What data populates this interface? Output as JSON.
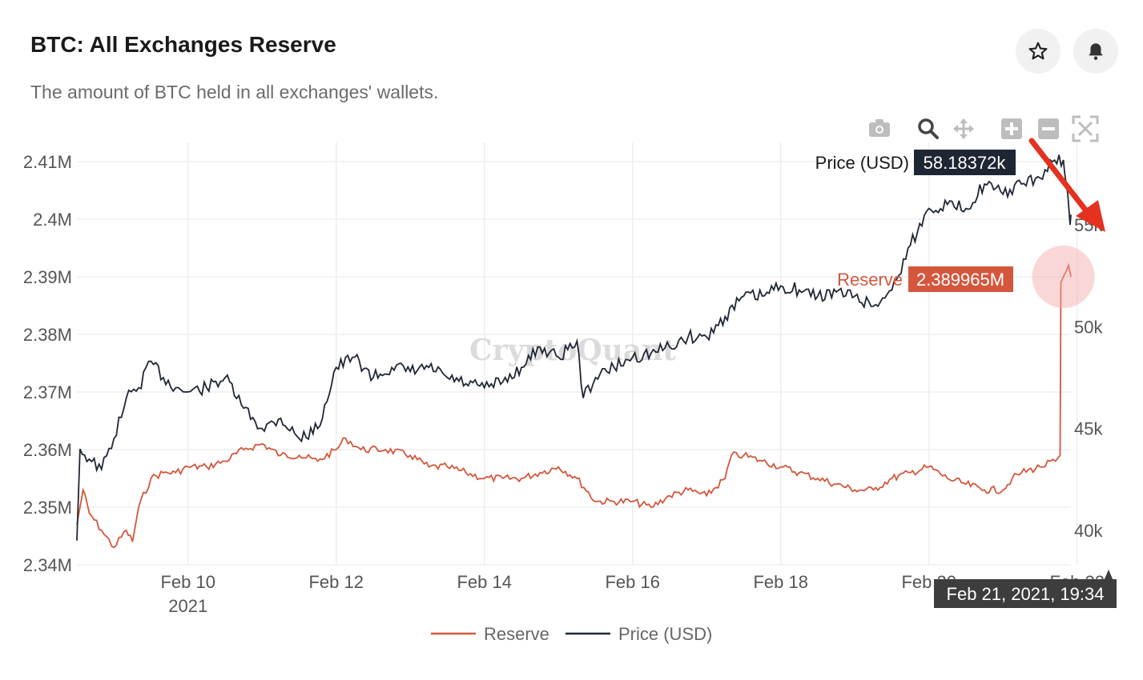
{
  "header": {
    "title": "BTC: All Exchanges Reserve",
    "subtitle": "The amount of BTC held in all exchanges' wallets.",
    "buttons": [
      {
        "icon": "star-icon",
        "name": "favorite-button"
      },
      {
        "icon": "bell-icon",
        "name": "alert-button"
      }
    ]
  },
  "toolbar": {
    "icons": [
      "camera-icon",
      "zoom-icon",
      "pan-icon",
      "zoom-in-icon",
      "zoom-out-icon",
      "autoscale-icon"
    ]
  },
  "watermark": "CryptoQuant",
  "hover": {
    "price_label": "Price (USD)",
    "price_value": "58.18372k",
    "reserve_label": "Reserve",
    "reserve_value": "2.389965M",
    "date_label": "Feb 21, 2021, 19:34"
  },
  "colors": {
    "reserve": "#d4573d",
    "price": "#1f2633",
    "grid": "#eeeeee",
    "annotation_arrow": "#e53120",
    "highlight": "#f4a7a7"
  },
  "chart_data": {
    "type": "line",
    "title": "BTC: All Exchanges Reserve",
    "x_range": [
      "2021-02-08 12:00",
      "2021-02-21 22:00"
    ],
    "x_ticks": [
      {
        "date": "2021-02-10",
        "label": "Feb 10",
        "sublabel": "2021"
      },
      {
        "date": "2021-02-12",
        "label": "Feb 12"
      },
      {
        "date": "2021-02-14",
        "label": "Feb 14"
      },
      {
        "date": "2021-02-16",
        "label": "Feb 16"
      },
      {
        "date": "2021-02-18",
        "label": "Feb 18"
      },
      {
        "date": "2021-02-20",
        "label": "Feb 20"
      },
      {
        "date": "2021-02-22",
        "label": "Feb 22"
      }
    ],
    "y_left": {
      "range": [
        2.34,
        2.412
      ],
      "ticks": [
        2.34,
        2.35,
        2.36,
        2.37,
        2.38,
        2.39,
        2.4,
        2.41
      ],
      "tick_labels": [
        "2.34M",
        "2.35M",
        "2.36M",
        "2.37M",
        "2.38M",
        "2.39M",
        "2.4M",
        "2.41M"
      ]
    },
    "y_right": {
      "range": [
        38.7,
        58.7
      ],
      "ticks": [
        40,
        45,
        50,
        55
      ],
      "tick_labels": [
        "40k",
        "45k",
        "50k",
        "55k"
      ]
    },
    "legend_position": "bottom-center",
    "series": [
      {
        "name": "Reserve",
        "axis": "left",
        "unit": "M BTC",
        "points": [
          [
            "2021-02-08 12:00",
            2.347
          ],
          [
            "2021-02-08 14:00",
            2.353
          ],
          [
            "2021-02-08 16:00",
            2.349
          ],
          [
            "2021-02-08 20:00",
            2.346
          ],
          [
            "2021-02-09 00:00",
            2.343
          ],
          [
            "2021-02-09 04:00",
            2.346
          ],
          [
            "2021-02-09 06:00",
            2.344
          ],
          [
            "2021-02-09 08:00",
            2.35
          ],
          [
            "2021-02-09 12:00",
            2.355
          ],
          [
            "2021-02-09 16:00",
            2.356
          ],
          [
            "2021-02-09 20:00",
            2.356
          ],
          [
            "2021-02-10 00:00",
            2.357
          ],
          [
            "2021-02-10 06:00",
            2.357
          ],
          [
            "2021-02-10 12:00",
            2.358
          ],
          [
            "2021-02-10 18:00",
            2.36
          ],
          [
            "2021-02-11 00:00",
            2.361
          ],
          [
            "2021-02-11 06:00",
            2.359
          ],
          [
            "2021-02-11 12:00",
            2.359
          ],
          [
            "2021-02-11 18:00",
            2.358
          ],
          [
            "2021-02-12 00:00",
            2.36
          ],
          [
            "2021-02-12 03:00",
            2.362
          ],
          [
            "2021-02-12 08:00",
            2.36
          ],
          [
            "2021-02-12 16:00",
            2.36
          ],
          [
            "2021-02-13 00:00",
            2.359
          ],
          [
            "2021-02-13 06:00",
            2.357
          ],
          [
            "2021-02-13 12:00",
            2.357
          ],
          [
            "2021-02-13 18:00",
            2.356
          ],
          [
            "2021-02-14 00:00",
            2.355
          ],
          [
            "2021-02-14 06:00",
            2.355
          ],
          [
            "2021-02-14 12:00",
            2.355
          ],
          [
            "2021-02-14 18:00",
            2.356
          ],
          [
            "2021-02-15 00:00",
            2.357
          ],
          [
            "2021-02-15 06:00",
            2.355
          ],
          [
            "2021-02-15 12:00",
            2.351
          ],
          [
            "2021-02-15 18:00",
            2.351
          ],
          [
            "2021-02-16 00:00",
            2.351
          ],
          [
            "2021-02-16 06:00",
            2.35
          ],
          [
            "2021-02-16 12:00",
            2.352
          ],
          [
            "2021-02-16 18:00",
            2.353
          ],
          [
            "2021-02-17 00:00",
            2.352
          ],
          [
            "2021-02-17 06:00",
            2.355
          ],
          [
            "2021-02-17 08:00",
            2.359
          ],
          [
            "2021-02-17 12:00",
            2.359
          ],
          [
            "2021-02-17 18:00",
            2.358
          ],
          [
            "2021-02-18 00:00",
            2.357
          ],
          [
            "2021-02-18 06:00",
            2.356
          ],
          [
            "2021-02-18 12:00",
            2.355
          ],
          [
            "2021-02-18 18:00",
            2.354
          ],
          [
            "2021-02-19 00:00",
            2.353
          ],
          [
            "2021-02-19 06:00",
            2.353
          ],
          [
            "2021-02-19 12:00",
            2.355
          ],
          [
            "2021-02-19 18:00",
            2.356
          ],
          [
            "2021-02-20 00:00",
            2.357
          ],
          [
            "2021-02-20 06:00",
            2.355
          ],
          [
            "2021-02-20 12:00",
            2.354
          ],
          [
            "2021-02-20 18:00",
            2.353
          ],
          [
            "2021-02-21 00:00",
            2.353
          ],
          [
            "2021-02-21 03:00",
            2.355
          ],
          [
            "2021-02-21 06:00",
            2.356
          ],
          [
            "2021-02-21 12:00",
            2.357
          ],
          [
            "2021-02-21 17:00",
            2.358
          ],
          [
            "2021-02-21 18:30",
            2.359
          ],
          [
            "2021-02-21 18:45",
            2.389
          ],
          [
            "2021-02-21 19:34",
            2.39
          ],
          [
            "2021-02-21 20:30",
            2.391
          ],
          [
            "2021-02-21 21:15",
            2.392
          ],
          [
            "2021-02-21 22:00",
            2.39
          ]
        ]
      },
      {
        "name": "Price (USD)",
        "axis": "right",
        "unit": "k USD",
        "points": [
          [
            "2021-02-08 12:00",
            39.5
          ],
          [
            "2021-02-08 13:00",
            44.0
          ],
          [
            "2021-02-08 16:00",
            43.5
          ],
          [
            "2021-02-08 20:00",
            43.0
          ],
          [
            "2021-02-09 00:00",
            44.5
          ],
          [
            "2021-02-09 04:00",
            46.5
          ],
          [
            "2021-02-09 08:00",
            47.0
          ],
          [
            "2021-02-09 12:00",
            48.3
          ],
          [
            "2021-02-09 16:00",
            47.5
          ],
          [
            "2021-02-09 20:00",
            47.0
          ],
          [
            "2021-02-10 00:00",
            46.8
          ],
          [
            "2021-02-10 06:00",
            47.0
          ],
          [
            "2021-02-10 12:00",
            47.5
          ],
          [
            "2021-02-10 18:00",
            46.0
          ],
          [
            "2021-02-11 00:00",
            45.0
          ],
          [
            "2021-02-11 06:00",
            45.5
          ],
          [
            "2021-02-11 12:00",
            44.5
          ],
          [
            "2021-02-11 18:00",
            45.0
          ],
          [
            "2021-02-12 00:00",
            48.0
          ],
          [
            "2021-02-12 06:00",
            48.5
          ],
          [
            "2021-02-12 12:00",
            47.5
          ],
          [
            "2021-02-12 18:00",
            48.0
          ],
          [
            "2021-02-13 00:00",
            47.8
          ],
          [
            "2021-02-13 06:00",
            48.0
          ],
          [
            "2021-02-13 12:00",
            47.5
          ],
          [
            "2021-02-13 18:00",
            47.2
          ],
          [
            "2021-02-14 00:00",
            47.0
          ],
          [
            "2021-02-14 06:00",
            47.3
          ],
          [
            "2021-02-14 12:00",
            48.0
          ],
          [
            "2021-02-14 18:00",
            49.0
          ],
          [
            "2021-02-15 00:00",
            48.5
          ],
          [
            "2021-02-15 06:00",
            49.3
          ],
          [
            "2021-02-15 08:00",
            46.5
          ],
          [
            "2021-02-15 12:00",
            47.5
          ],
          [
            "2021-02-15 18:00",
            48.0
          ],
          [
            "2021-02-16 00:00",
            48.5
          ],
          [
            "2021-02-16 06:00",
            48.7
          ],
          [
            "2021-02-16 12:00",
            49.0
          ],
          [
            "2021-02-16 18:00",
            49.5
          ],
          [
            "2021-02-17 00:00",
            49.5
          ],
          [
            "2021-02-17 06:00",
            50.5
          ],
          [
            "2021-02-17 12:00",
            51.5
          ],
          [
            "2021-02-17 18:00",
            51.5
          ],
          [
            "2021-02-18 00:00",
            52.0
          ],
          [
            "2021-02-18 06:00",
            51.8
          ],
          [
            "2021-02-18 12:00",
            51.5
          ],
          [
            "2021-02-18 18:00",
            51.7
          ],
          [
            "2021-02-19 00:00",
            51.5
          ],
          [
            "2021-02-19 06:00",
            51.0
          ],
          [
            "2021-02-19 12:00",
            51.8
          ],
          [
            "2021-02-19 18:00",
            54.0
          ],
          [
            "2021-02-20 00:00",
            55.8
          ],
          [
            "2021-02-20 06:00",
            56.0
          ],
          [
            "2021-02-20 12:00",
            55.8
          ],
          [
            "2021-02-20 18:00",
            57.0
          ],
          [
            "2021-02-21 00:00",
            56.5
          ],
          [
            "2021-02-21 06:00",
            57.0
          ],
          [
            "2021-02-21 12:00",
            57.3
          ],
          [
            "2021-02-21 16:00",
            58.1
          ],
          [
            "2021-02-21 19:34",
            58.18
          ],
          [
            "2021-02-21 20:00",
            57.5
          ],
          [
            "2021-02-21 21:00",
            56.5
          ],
          [
            "2021-02-21 21:45",
            55.0
          ],
          [
            "2021-02-21 22:00",
            55.5
          ]
        ]
      }
    ]
  }
}
